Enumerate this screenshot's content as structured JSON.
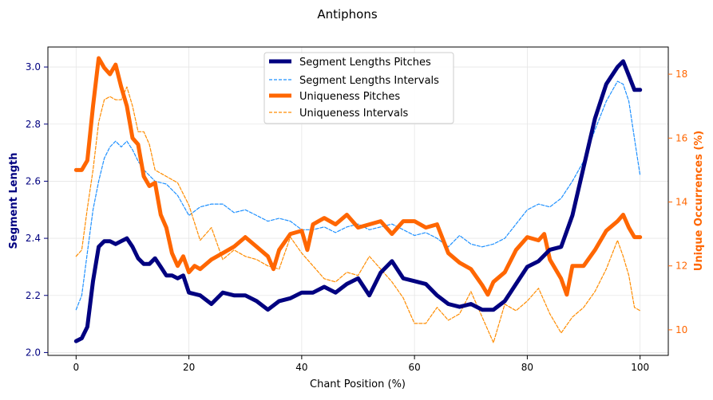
{
  "chart_data": {
    "type": "line",
    "title": "Antiphons",
    "xlabel": "Chant Position (%)",
    "ylabel_left": "Segment Length",
    "ylabel_right": "Unique Occurrences (%)",
    "xlim": [
      -5,
      105
    ],
    "ylim_left": [
      1.99,
      3.07
    ],
    "ylim_right": [
      9.2,
      18.85
    ],
    "xticks": [
      0,
      20,
      40,
      60,
      80,
      100
    ],
    "yticks_left": [
      2.0,
      2.2,
      2.4,
      2.6,
      2.8,
      3.0
    ],
    "yticks_right": [
      10,
      12,
      14,
      16,
      18
    ],
    "grid": true,
    "legend_position": "top-center",
    "colors": {
      "left_axis": "#000080",
      "right_axis": "#ff6600",
      "seg_pitches": "#000080",
      "seg_intervals": "#1e90ff",
      "uniq_pitches": "#ff6600",
      "uniq_intervals": "#ff8c00"
    },
    "series": [
      {
        "name": "Segment Lengths Pitches",
        "axis": "left",
        "style": "solid-thick",
        "x": [
          0,
          1,
          2,
          3,
          4,
          5,
          6,
          7,
          8,
          9,
          10,
          11,
          12,
          13,
          14,
          15,
          16,
          17,
          18,
          19,
          20,
          22,
          24,
          26,
          28,
          30,
          32,
          34,
          36,
          38,
          40,
          42,
          44,
          46,
          48,
          50,
          52,
          54,
          56,
          58,
          60,
          62,
          64,
          66,
          68,
          70,
          72,
          74,
          76,
          78,
          80,
          82,
          84,
          86,
          88,
          90,
          92,
          94,
          96,
          97,
          98,
          99,
          100
        ],
        "values": [
          2.04,
          2.05,
          2.09,
          2.25,
          2.37,
          2.39,
          2.39,
          2.38,
          2.39,
          2.4,
          2.37,
          2.33,
          2.31,
          2.31,
          2.33,
          2.3,
          2.27,
          2.27,
          2.26,
          2.27,
          2.21,
          2.2,
          2.17,
          2.21,
          2.2,
          2.2,
          2.18,
          2.15,
          2.18,
          2.19,
          2.21,
          2.21,
          2.23,
          2.21,
          2.24,
          2.26,
          2.2,
          2.28,
          2.32,
          2.26,
          2.25,
          2.24,
          2.2,
          2.17,
          2.16,
          2.17,
          2.15,
          2.15,
          2.18,
          2.24,
          2.3,
          2.32,
          2.36,
          2.37,
          2.48,
          2.65,
          2.82,
          2.94,
          3.0,
          3.02,
          2.97,
          2.92,
          2.92
        ]
      },
      {
        "name": "Segment Lengths Intervals",
        "axis": "left",
        "style": "dashed",
        "x": [
          0,
          1,
          2,
          3,
          4,
          5,
          6,
          7,
          8,
          9,
          10,
          11,
          12,
          14,
          16,
          18,
          20,
          22,
          24,
          26,
          28,
          30,
          32,
          34,
          36,
          38,
          40,
          42,
          44,
          46,
          48,
          50,
          52,
          54,
          56,
          58,
          60,
          62,
          64,
          66,
          68,
          70,
          72,
          74,
          76,
          78,
          80,
          82,
          84,
          86,
          88,
          90,
          92,
          94,
          96,
          97,
          98,
          99,
          100
        ],
        "values": [
          2.15,
          2.2,
          2.35,
          2.5,
          2.6,
          2.68,
          2.72,
          2.74,
          2.72,
          2.74,
          2.71,
          2.67,
          2.64,
          2.6,
          2.59,
          2.55,
          2.48,
          2.51,
          2.52,
          2.52,
          2.49,
          2.5,
          2.48,
          2.46,
          2.47,
          2.46,
          2.43,
          2.43,
          2.44,
          2.42,
          2.44,
          2.45,
          2.43,
          2.44,
          2.45,
          2.43,
          2.41,
          2.42,
          2.4,
          2.37,
          2.41,
          2.38,
          2.37,
          2.38,
          2.4,
          2.45,
          2.5,
          2.52,
          2.51,
          2.54,
          2.6,
          2.67,
          2.78,
          2.88,
          2.95,
          2.94,
          2.88,
          2.75,
          2.62
        ]
      },
      {
        "name": "Uniqueness Pitches",
        "axis": "right",
        "style": "solid-thick",
        "x": [
          0,
          1,
          2,
          3,
          4,
          5,
          6,
          7,
          8,
          9,
          10,
          11,
          12,
          13,
          14,
          15,
          16,
          17,
          18,
          19,
          20,
          21,
          22,
          24,
          26,
          28,
          30,
          32,
          34,
          35,
          36,
          38,
          40,
          41,
          42,
          44,
          46,
          48,
          50,
          52,
          54,
          56,
          58,
          60,
          62,
          64,
          66,
          68,
          70,
          72,
          73,
          74,
          76,
          78,
          80,
          82,
          83,
          84,
          86,
          87,
          88,
          90,
          92,
          94,
          96,
          97,
          98,
          99,
          100
        ],
        "values": [
          15.0,
          15.0,
          15.3,
          17.0,
          18.5,
          18.2,
          18.0,
          18.3,
          17.6,
          17.0,
          16.0,
          15.8,
          14.8,
          14.5,
          14.6,
          13.6,
          13.2,
          12.4,
          12.0,
          12.3,
          11.8,
          12.0,
          11.9,
          12.2,
          12.4,
          12.6,
          12.9,
          12.6,
          12.3,
          11.9,
          12.5,
          13.0,
          13.1,
          12.5,
          13.3,
          13.5,
          13.3,
          13.6,
          13.2,
          13.3,
          13.4,
          13.0,
          13.4,
          13.4,
          13.2,
          13.3,
          12.4,
          12.1,
          11.9,
          11.4,
          11.1,
          11.5,
          11.8,
          12.5,
          12.9,
          12.8,
          13.0,
          12.2,
          11.6,
          11.1,
          12.0,
          12.0,
          12.5,
          13.1,
          13.4,
          13.6,
          13.2,
          12.9,
          12.9
        ]
      },
      {
        "name": "Uniqueness Intervals",
        "axis": "right",
        "style": "dashed",
        "x": [
          0,
          1,
          2,
          3,
          4,
          5,
          6,
          7,
          8,
          9,
          10,
          11,
          12,
          13,
          14,
          16,
          18,
          20,
          22,
          24,
          26,
          28,
          30,
          32,
          34,
          36,
          38,
          40,
          42,
          44,
          46,
          48,
          50,
          52,
          54,
          56,
          58,
          60,
          62,
          64,
          66,
          68,
          70,
          72,
          74,
          76,
          78,
          80,
          82,
          84,
          86,
          88,
          90,
          92,
          94,
          96,
          97,
          98,
          99,
          100
        ],
        "values": [
          12.3,
          12.5,
          13.8,
          15.0,
          16.5,
          17.2,
          17.3,
          17.2,
          17.2,
          17.6,
          17.0,
          16.2,
          16.2,
          15.8,
          15.0,
          14.8,
          14.6,
          13.9,
          12.8,
          13.2,
          12.2,
          12.5,
          12.3,
          12.2,
          12.0,
          11.9,
          12.9,
          12.4,
          12.0,
          11.6,
          11.5,
          11.8,
          11.7,
          12.3,
          11.9,
          11.5,
          11.0,
          10.2,
          10.2,
          10.7,
          10.3,
          10.5,
          11.2,
          10.4,
          9.6,
          10.8,
          10.6,
          10.9,
          11.3,
          10.5,
          9.9,
          10.4,
          10.7,
          11.2,
          11.9,
          12.8,
          12.3,
          11.7,
          10.7,
          10.6
        ]
      }
    ]
  }
}
